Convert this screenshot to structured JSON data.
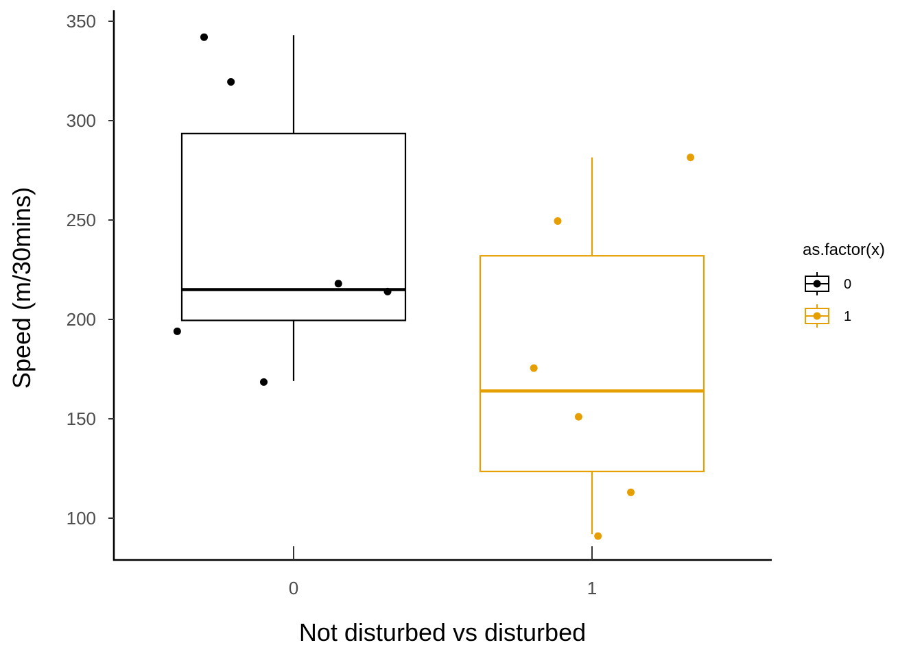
{
  "chart_data": {
    "type": "box",
    "xlabel": "Not disturbed vs disturbed",
    "ylabel": "Speed (m/30mins)",
    "categories": [
      "0",
      "1"
    ],
    "yticks": [
      100,
      150,
      200,
      250,
      300,
      350
    ],
    "ylim": [
      79,
      355
    ],
    "grid": false,
    "legend": {
      "title": "as.factor(x)",
      "placement": "right",
      "items": [
        "0",
        "1"
      ]
    },
    "groups": [
      {
        "name": "0",
        "color": "#000000",
        "box": {
          "min": 169,
          "q1": 199.5,
          "median": 215,
          "q3": 293.5,
          "max": 343
        },
        "points": [
          {
            "x": -0.39,
            "y": 194
          },
          {
            "x": -0.3,
            "y": 342
          },
          {
            "x": -0.21,
            "y": 319.5
          },
          {
            "x": -0.1,
            "y": 168.5
          },
          {
            "x": 0.15,
            "y": 218
          },
          {
            "x": 0.315,
            "y": 214
          }
        ]
      },
      {
        "name": "1",
        "color": "#E69F00",
        "box": {
          "min": 92,
          "q1": 123.5,
          "median": 164,
          "q3": 232,
          "max": 281.5
        },
        "points": [
          {
            "x": 0.805,
            "y": 175.5
          },
          {
            "x": 0.885,
            "y": 249.5
          },
          {
            "x": 0.955,
            "y": 151
          },
          {
            "x": 1.02,
            "y": 91
          },
          {
            "x": 1.13,
            "y": 113
          },
          {
            "x": 1.33,
            "y": 281.5
          }
        ]
      }
    ]
  }
}
